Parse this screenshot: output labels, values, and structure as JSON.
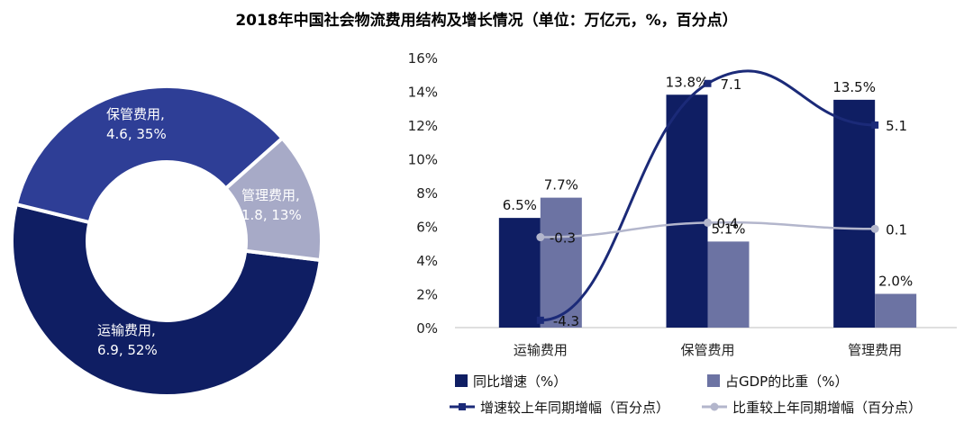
{
  "title": "2018年中国社会物流费用结构及增长情况（单位：万亿元，%，百分点）",
  "colors": {
    "dark_navy": "#0f1e63",
    "mid_blue": "#2e3e96",
    "grey_purple": "#6c73a3",
    "light_grey": "#a7aac7",
    "grey_line": "#b3b6cc",
    "white": "#ffffff"
  },
  "chart_data": [
    {
      "type": "pie",
      "title": "",
      "slices": [
        {
          "name": "运输费用",
          "value": 6.9,
          "percent": "52%",
          "label_line1": "运输费用,",
          "label_line2": "6.9, 52%",
          "color": "#0f1e63"
        },
        {
          "name": "保管费用",
          "value": 4.6,
          "percent": "35%",
          "label_line1": "保管费用,",
          "label_line2": "4.6, 35%",
          "color": "#2e3e96"
        },
        {
          "name": "管理费用",
          "value": 1.8,
          "percent": "13%",
          "label_line1": "管理费用,",
          "label_line2": "1.8, 13%",
          "color": "#a7aac7"
        }
      ]
    },
    {
      "type": "bar",
      "title": "",
      "categories": [
        "运输费用",
        "保管费用",
        "管理费用"
      ],
      "ylim": [
        0,
        16
      ],
      "yticks": [
        "0%",
        "2%",
        "4%",
        "6%",
        "8%",
        "10%",
        "12%",
        "14%",
        "16%"
      ],
      "series": [
        {
          "name": "同比增速（%）",
          "kind": "bar",
          "values": [
            6.5,
            13.8,
            13.5
          ],
          "labels": [
            "6.5%",
            "13.8%",
            "13.5%"
          ],
          "color": "#0f1e63"
        },
        {
          "name": "占GDP的比重（%）",
          "kind": "bar",
          "values": [
            7.7,
            5.1,
            2.0
          ],
          "labels": [
            "7.7%",
            "5.1%",
            "2.0%"
          ],
          "color": "#6c73a3"
        },
        {
          "name": "增速较上年同期增幅（百分点）",
          "kind": "line",
          "values": [
            -4.3,
            7.1,
            5.1
          ],
          "labels": [
            "-4.3",
            "7.1",
            "5.1"
          ],
          "color": "#1b2a78"
        },
        {
          "name": "比重较上年同期增幅（百分点）",
          "kind": "line",
          "values": [
            -0.3,
            0.4,
            0.1
          ],
          "labels": [
            "-0.3",
            "0.4",
            "0.1"
          ],
          "color": "#b3b6cc"
        }
      ],
      "legend": "bottom"
    }
  ]
}
